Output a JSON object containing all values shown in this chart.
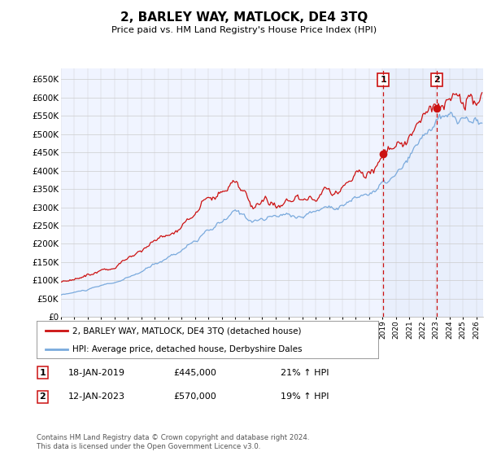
{
  "title": "2, BARLEY WAY, MATLOCK, DE4 3TQ",
  "subtitle": "Price paid vs. HM Land Registry's House Price Index (HPI)",
  "ylim": [
    0,
    680000
  ],
  "yticks": [
    0,
    50000,
    100000,
    150000,
    200000,
    250000,
    300000,
    350000,
    400000,
    450000,
    500000,
    550000,
    600000,
    650000
  ],
  "xlim_start": 1995.0,
  "xlim_end": 2026.5,
  "sale1_date": 2019.04,
  "sale1_price": 445000,
  "sale1_label": "1",
  "sale2_date": 2023.04,
  "sale2_price": 570000,
  "sale2_label": "2",
  "line_color_hpi": "#7aaadd",
  "line_color_price": "#cc1111",
  "dashed_line_color": "#cc1111",
  "bg_color": "#f0f4ff",
  "shade_color": "#dde8f8",
  "legend_line1": "2, BARLEY WAY, MATLOCK, DE4 3TQ (detached house)",
  "legend_line2": "HPI: Average price, detached house, Derbyshire Dales",
  "annotation1_date": "18-JAN-2019",
  "annotation1_price": "£445,000",
  "annotation1_hpi": "21% ↑ HPI",
  "annotation2_date": "12-JAN-2023",
  "annotation2_price": "£570,000",
  "annotation2_hpi": "19% ↑ HPI",
  "footer": "Contains HM Land Registry data © Crown copyright and database right 2024.\nThis data is licensed under the Open Government Licence v3.0."
}
